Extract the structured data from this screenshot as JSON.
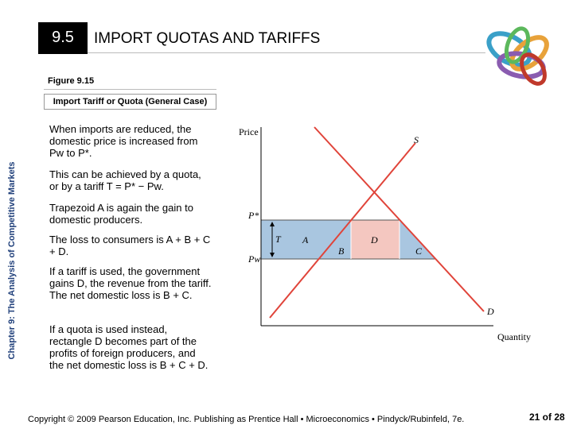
{
  "header": {
    "number": "9.5",
    "title": "IMPORT QUOTAS AND TARIFFS"
  },
  "figure": {
    "label": "Figure 9.15",
    "caption": "Import Tariff or Quota (General Case)"
  },
  "sidebar": "Chapter 9: The Analysis of Competitive Markets",
  "paragraphs": [
    "When imports are reduced, the domestic price is increased from Pw to P*.",
    "This can be achieved by a quota, or by a tariff T = P* − Pw.",
    "Trapezoid A is again the gain to domestic producers.",
    "The loss to consumers is A + B + C + D.",
    "If a tariff is used, the government gains D, the revenue from the tariff.  The net domestic loss is B + C.",
    "If a quota is used instead, rectangle D becomes part of the profits of foreign producers, and the net domestic loss is B + C + D."
  ],
  "graph": {
    "y_label": "Price",
    "x_label": "Quantity",
    "supply": "S",
    "demand": "D",
    "p_star": "P*",
    "p_w": "Pw",
    "tariff": "T",
    "areas": [
      "A",
      "B",
      "D",
      "C"
    ]
  },
  "footer": {
    "copyright": "Copyright © 2009 Pearson Education, Inc. Publishing as Prentice Hall • Microeconomics • Pindyck/Rubinfeld, 7e.",
    "page": "21 of 28"
  }
}
